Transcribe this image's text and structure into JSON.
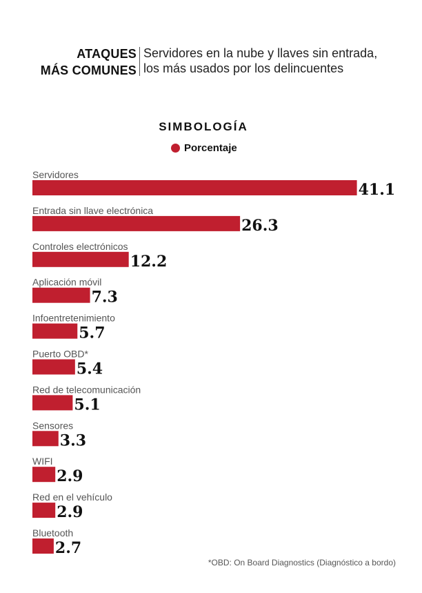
{
  "header": {
    "title_line1": "ATAQUES",
    "title_line2": "MÁS COMUNES",
    "subtitle_line1": "Servidores en la nube y llaves sin entrada,",
    "subtitle_line2": "los más usados por los delincuentes"
  },
  "legend": {
    "title": "SIMBOLOGÍA",
    "item_label": "Porcentaje",
    "item_color": "#c01f2f"
  },
  "footnote": "*OBD: On Board Diagnostics (Diagnóstico a bordo)",
  "chart_data": {
    "type": "bar",
    "orientation": "horizontal",
    "categories": [
      "Servidores",
      "Entrada sin llave electrónica",
      "Controles electrónicos",
      "Aplicación móvil",
      "Infoentretenimiento",
      "Puerto OBD*",
      "Red de telecomunicación",
      "Sensores",
      "WIFI",
      "Red en el vehículo",
      "Bluetooth"
    ],
    "values": [
      41.1,
      26.3,
      12.2,
      7.3,
      5.7,
      5.4,
      5.1,
      3.3,
      2.9,
      2.9,
      2.7
    ],
    "value_labels": [
      "41.1",
      "26.3",
      "12.2",
      "7.3",
      "5.7",
      "5.4",
      "5.1",
      "3.3",
      "2.9",
      "2.9",
      "2.7"
    ],
    "series": [
      {
        "name": "Porcentaje",
        "values": [
          41.1,
          26.3,
          12.2,
          7.3,
          5.7,
          5.4,
          5.1,
          3.3,
          2.9,
          2.9,
          2.7
        ]
      }
    ],
    "title": "",
    "xlabel": "",
    "ylabel": "",
    "bar_color": "#c01f2f",
    "grid": false,
    "legend_position": "top-center"
  }
}
